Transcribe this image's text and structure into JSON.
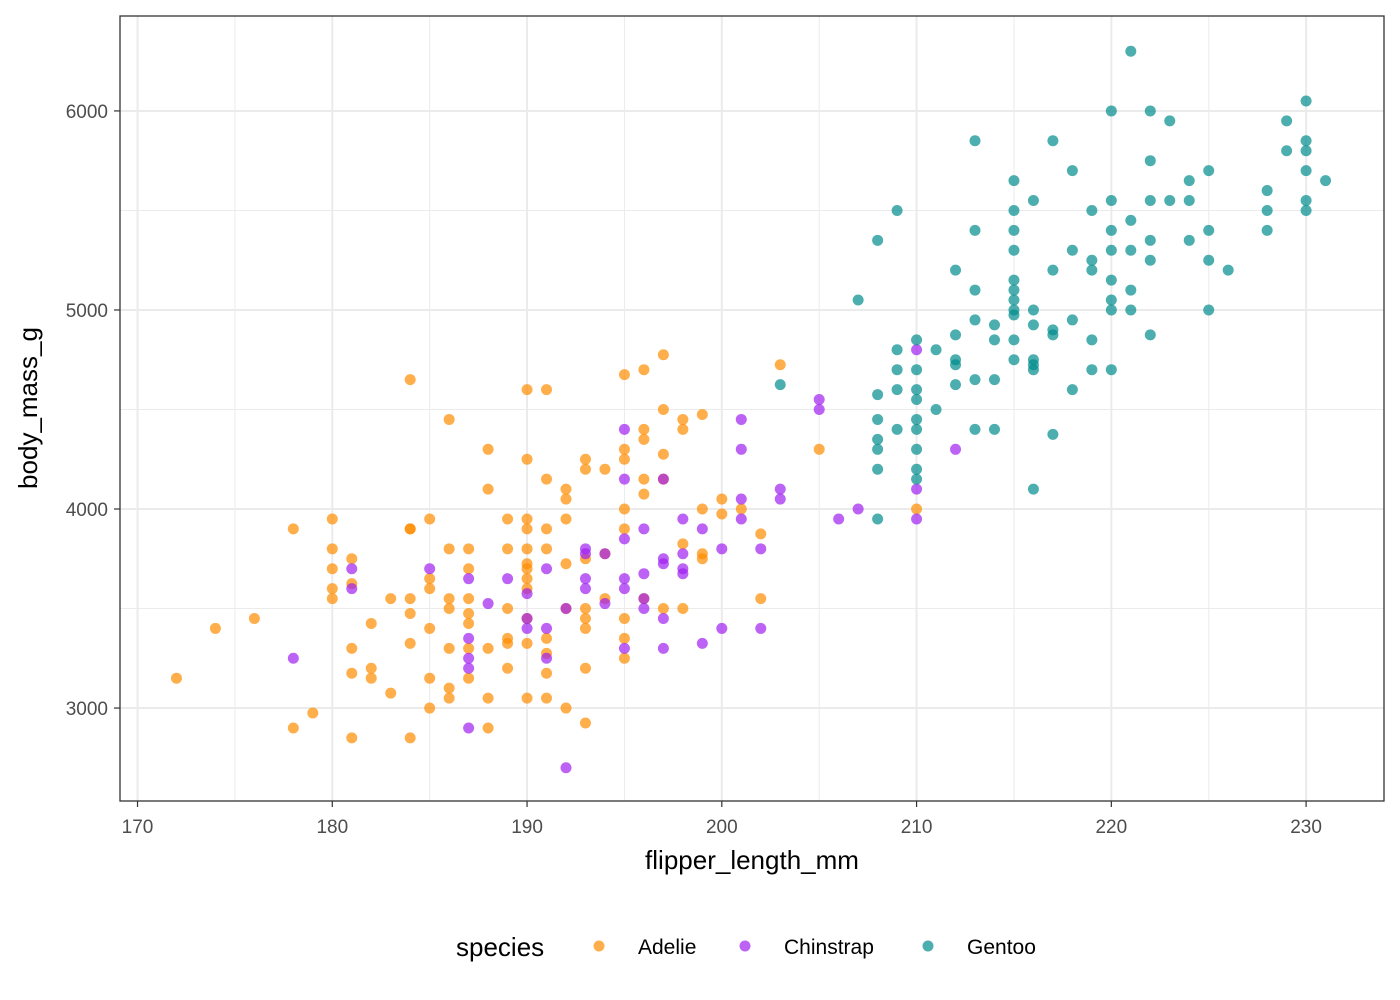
{
  "chart_data": {
    "type": "scatter",
    "title": "",
    "xlabel": "flipper_length_mm",
    "ylabel": "body_mass_g",
    "xlim": [
      169.1,
      234.0
    ],
    "ylim": [
      2533,
      6477
    ],
    "xticks": [
      170,
      180,
      190,
      200,
      210,
      220,
      230
    ],
    "yticks": [
      3000,
      4000,
      5000,
      6000
    ],
    "grid": true,
    "legend": {
      "title": "species",
      "placement": "bottom"
    },
    "series": [
      {
        "name": "Adelie",
        "color": "#FF8C00",
        "points": [
          [
            172,
            3150
          ],
          [
            174,
            3400
          ],
          [
            176,
            3450
          ],
          [
            178,
            2900
          ],
          [
            178,
            3900
          ],
          [
            179,
            2975
          ],
          [
            180,
            3950
          ],
          [
            180,
            3800
          ],
          [
            180,
            3700
          ],
          [
            180,
            3600
          ],
          [
            180,
            3550
          ],
          [
            181,
            3750
          ],
          [
            181,
            3625
          ],
          [
            181,
            3300
          ],
          [
            181,
            3175
          ],
          [
            181,
            2850
          ],
          [
            182,
            3425
          ],
          [
            182,
            3200
          ],
          [
            182,
            3150
          ],
          [
            183,
            3550
          ],
          [
            183,
            3075
          ],
          [
            184,
            4650
          ],
          [
            184,
            3900
          ],
          [
            184,
            3900
          ],
          [
            184,
            3550
          ],
          [
            184,
            3475
          ],
          [
            184,
            3325
          ],
          [
            184,
            2850
          ],
          [
            185,
            3950
          ],
          [
            185,
            3650
          ],
          [
            185,
            3600
          ],
          [
            185,
            3400
          ],
          [
            185,
            3150
          ],
          [
            185,
            3000
          ],
          [
            186,
            4450
          ],
          [
            186,
            3800
          ],
          [
            186,
            3550
          ],
          [
            186,
            3500
          ],
          [
            186,
            3300
          ],
          [
            186,
            3100
          ],
          [
            186,
            3050
          ],
          [
            187,
            3800
          ],
          [
            187,
            3700
          ],
          [
            187,
            3550
          ],
          [
            187,
            3475
          ],
          [
            187,
            3425
          ],
          [
            187,
            3300
          ],
          [
            187,
            3150
          ],
          [
            188,
            4300
          ],
          [
            188,
            4100
          ],
          [
            188,
            3300
          ],
          [
            188,
            3050
          ],
          [
            188,
            2900
          ],
          [
            189,
            3950
          ],
          [
            189,
            3800
          ],
          [
            189,
            3500
          ],
          [
            189,
            3350
          ],
          [
            189,
            3325
          ],
          [
            189,
            3200
          ],
          [
            190,
            4600
          ],
          [
            190,
            4250
          ],
          [
            190,
            3950
          ],
          [
            190,
            3900
          ],
          [
            190,
            3800
          ],
          [
            190,
            3725
          ],
          [
            190,
            3700
          ],
          [
            190,
            3650
          ],
          [
            190,
            3600
          ],
          [
            190,
            3450
          ],
          [
            190,
            3325
          ],
          [
            190,
            3050
          ],
          [
            191,
            4600
          ],
          [
            191,
            4150
          ],
          [
            191,
            3900
          ],
          [
            191,
            3800
          ],
          [
            191,
            3350
          ],
          [
            191,
            3275
          ],
          [
            191,
            3175
          ],
          [
            191,
            3050
          ],
          [
            192,
            4100
          ],
          [
            192,
            4050
          ],
          [
            192,
            3950
          ],
          [
            192,
            3725
          ],
          [
            192,
            3500
          ],
          [
            192,
            3000
          ],
          [
            193,
            4250
          ],
          [
            193,
            4200
          ],
          [
            193,
            3750
          ],
          [
            193,
            3500
          ],
          [
            193,
            3450
          ],
          [
            193,
            3400
          ],
          [
            193,
            3200
          ],
          [
            193,
            2925
          ],
          [
            194,
            4200
          ],
          [
            194,
            3775
          ],
          [
            194,
            3550
          ],
          [
            195,
            4675
          ],
          [
            195,
            4300
          ],
          [
            195,
            4250
          ],
          [
            195,
            4000
          ],
          [
            195,
            3900
          ],
          [
            195,
            3450
          ],
          [
            195,
            3350
          ],
          [
            195,
            3250
          ],
          [
            196,
            4700
          ],
          [
            196,
            4400
          ],
          [
            196,
            4350
          ],
          [
            196,
            4150
          ],
          [
            196,
            4075
          ],
          [
            196,
            3550
          ],
          [
            197,
            4775
          ],
          [
            197,
            4500
          ],
          [
            197,
            4275
          ],
          [
            197,
            4150
          ],
          [
            197,
            3500
          ],
          [
            198,
            4450
          ],
          [
            198,
            4400
          ],
          [
            198,
            3825
          ],
          [
            198,
            3500
          ],
          [
            199,
            4475
          ],
          [
            199,
            4000
          ],
          [
            199,
            3775
          ],
          [
            199,
            3750
          ],
          [
            200,
            4050
          ],
          [
            200,
            3975
          ],
          [
            201,
            4000
          ],
          [
            202,
            3875
          ],
          [
            202,
            3550
          ],
          [
            203,
            4725
          ],
          [
            205,
            4300
          ],
          [
            210,
            4000
          ]
        ]
      },
      {
        "name": "Chinstrap",
        "color": "#A020F0",
        "points": [
          [
            178,
            3250
          ],
          [
            181,
            3700
          ],
          [
            181,
            3600
          ],
          [
            185,
            3700
          ],
          [
            187,
            3650
          ],
          [
            187,
            3350
          ],
          [
            187,
            3250
          ],
          [
            187,
            3200
          ],
          [
            187,
            2900
          ],
          [
            188,
            3525
          ],
          [
            189,
            3650
          ],
          [
            190,
            3575
          ],
          [
            190,
            3450
          ],
          [
            190,
            3400
          ],
          [
            191,
            3700
          ],
          [
            191,
            3400
          ],
          [
            191,
            3250
          ],
          [
            192,
            3500
          ],
          [
            192,
            2700
          ],
          [
            193,
            3800
          ],
          [
            193,
            3775
          ],
          [
            193,
            3650
          ],
          [
            193,
            3600
          ],
          [
            194,
            3775
          ],
          [
            194,
            3525
          ],
          [
            195,
            4400
          ],
          [
            195,
            4150
          ],
          [
            195,
            3850
          ],
          [
            195,
            3650
          ],
          [
            195,
            3600
          ],
          [
            195,
            3300
          ],
          [
            196,
            3900
          ],
          [
            196,
            3675
          ],
          [
            196,
            3550
          ],
          [
            196,
            3500
          ],
          [
            197,
            4150
          ],
          [
            197,
            3750
          ],
          [
            197,
            3725
          ],
          [
            197,
            3450
          ],
          [
            197,
            3300
          ],
          [
            198,
            3950
          ],
          [
            198,
            3775
          ],
          [
            198,
            3700
          ],
          [
            198,
            3675
          ],
          [
            199,
            3900
          ],
          [
            199,
            3325
          ],
          [
            200,
            3800
          ],
          [
            200,
            3400
          ],
          [
            201,
            4450
          ],
          [
            201,
            4300
          ],
          [
            201,
            4050
          ],
          [
            201,
            3950
          ],
          [
            202,
            3800
          ],
          [
            202,
            3400
          ],
          [
            203,
            4100
          ],
          [
            203,
            4050
          ],
          [
            205,
            4550
          ],
          [
            205,
            4500
          ],
          [
            206,
            3950
          ],
          [
            207,
            4000
          ],
          [
            210,
            4800
          ],
          [
            210,
            4100
          ],
          [
            210,
            3950
          ],
          [
            212,
            4300
          ]
        ]
      },
      {
        "name": "Gentoo",
        "color": "#008B8B",
        "points": [
          [
            203,
            4625
          ],
          [
            207,
            5050
          ],
          [
            208,
            5350
          ],
          [
            208,
            4575
          ],
          [
            208,
            4450
          ],
          [
            208,
            4350
          ],
          [
            208,
            4300
          ],
          [
            208,
            4200
          ],
          [
            208,
            3950
          ],
          [
            209,
            5500
          ],
          [
            209,
            4800
          ],
          [
            209,
            4700
          ],
          [
            209,
            4600
          ],
          [
            209,
            4400
          ],
          [
            210,
            4850
          ],
          [
            210,
            4700
          ],
          [
            210,
            4600
          ],
          [
            210,
            4550
          ],
          [
            210,
            4450
          ],
          [
            210,
            4400
          ],
          [
            210,
            4300
          ],
          [
            210,
            4200
          ],
          [
            210,
            4150
          ],
          [
            211,
            4800
          ],
          [
            211,
            4500
          ],
          [
            212,
            5200
          ],
          [
            212,
            4875
          ],
          [
            212,
            4750
          ],
          [
            212,
            4725
          ],
          [
            212,
            4625
          ],
          [
            213,
            5850
          ],
          [
            213,
            5400
          ],
          [
            213,
            5100
          ],
          [
            213,
            4950
          ],
          [
            213,
            4650
          ],
          [
            213,
            4400
          ],
          [
            214,
            4925
          ],
          [
            214,
            4850
          ],
          [
            214,
            4650
          ],
          [
            214,
            4400
          ],
          [
            215,
            5650
          ],
          [
            215,
            5500
          ],
          [
            215,
            5400
          ],
          [
            215,
            5300
          ],
          [
            215,
            5150
          ],
          [
            215,
            5100
          ],
          [
            215,
            5050
          ],
          [
            215,
            5000
          ],
          [
            215,
            4975
          ],
          [
            215,
            4850
          ],
          [
            215,
            4750
          ],
          [
            216,
            5550
          ],
          [
            216,
            5000
          ],
          [
            216,
            4925
          ],
          [
            216,
            4750
          ],
          [
            216,
            4725
          ],
          [
            216,
            4700
          ],
          [
            216,
            4100
          ],
          [
            217,
            5850
          ],
          [
            217,
            5200
          ],
          [
            217,
            4900
          ],
          [
            217,
            4875
          ],
          [
            217,
            4375
          ],
          [
            218,
            5700
          ],
          [
            218,
            5300
          ],
          [
            218,
            4950
          ],
          [
            218,
            4600
          ],
          [
            219,
            5500
          ],
          [
            219,
            5250
          ],
          [
            219,
            5200
          ],
          [
            219,
            4850
          ],
          [
            219,
            4700
          ],
          [
            220,
            6000
          ],
          [
            220,
            5550
          ],
          [
            220,
            5400
          ],
          [
            220,
            5300
          ],
          [
            220,
            5150
          ],
          [
            220,
            5050
          ],
          [
            220,
            5000
          ],
          [
            220,
            4700
          ],
          [
            221,
            6300
          ],
          [
            221,
            5450
          ],
          [
            221,
            5300
          ],
          [
            221,
            5100
          ],
          [
            221,
            5000
          ],
          [
            222,
            6000
          ],
          [
            222,
            5750
          ],
          [
            222,
            5550
          ],
          [
            222,
            5350
          ],
          [
            222,
            5250
          ],
          [
            222,
            4875
          ],
          [
            223,
            5950
          ],
          [
            223,
            5550
          ],
          [
            224,
            5650
          ],
          [
            224,
            5550
          ],
          [
            224,
            5350
          ],
          [
            225,
            5700
          ],
          [
            225,
            5400
          ],
          [
            225,
            5250
          ],
          [
            225,
            5000
          ],
          [
            226,
            5200
          ],
          [
            228,
            5600
          ],
          [
            228,
            5500
          ],
          [
            228,
            5400
          ],
          [
            229,
            5950
          ],
          [
            229,
            5800
          ],
          [
            230,
            6050
          ],
          [
            230,
            5850
          ],
          [
            230,
            5800
          ],
          [
            230,
            5700
          ],
          [
            230,
            5550
          ],
          [
            230,
            5500
          ],
          [
            231,
            5650
          ]
        ]
      }
    ]
  }
}
